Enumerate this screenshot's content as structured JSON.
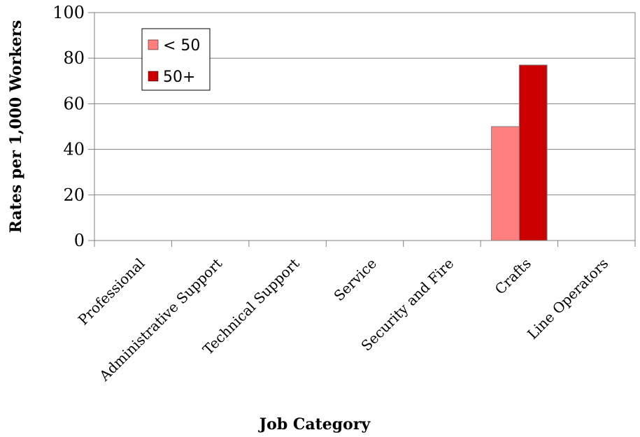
{
  "chart_data": {
    "type": "bar",
    "title": "",
    "xlabel": "Job Category",
    "ylabel": "Rates per 1,000 Workers",
    "ylim": [
      0,
      100
    ],
    "yticks": [
      "0",
      "20",
      "40",
      "60",
      "80",
      "100"
    ],
    "grid": true,
    "legend_position": "top-left",
    "categories": [
      "Professional",
      "Administrative Support",
      "Technical Support",
      "Service",
      "Security and Fire",
      "Crafts",
      "Line Operators"
    ],
    "series": [
      {
        "name": "< 50",
        "color": "#ff7f7f",
        "values": [
          0,
          0,
          0,
          0,
          0,
          50,
          0
        ]
      },
      {
        "name": "50+",
        "color": "#cc0000",
        "values": [
          0,
          0,
          0,
          0,
          0,
          77,
          0
        ]
      }
    ]
  }
}
